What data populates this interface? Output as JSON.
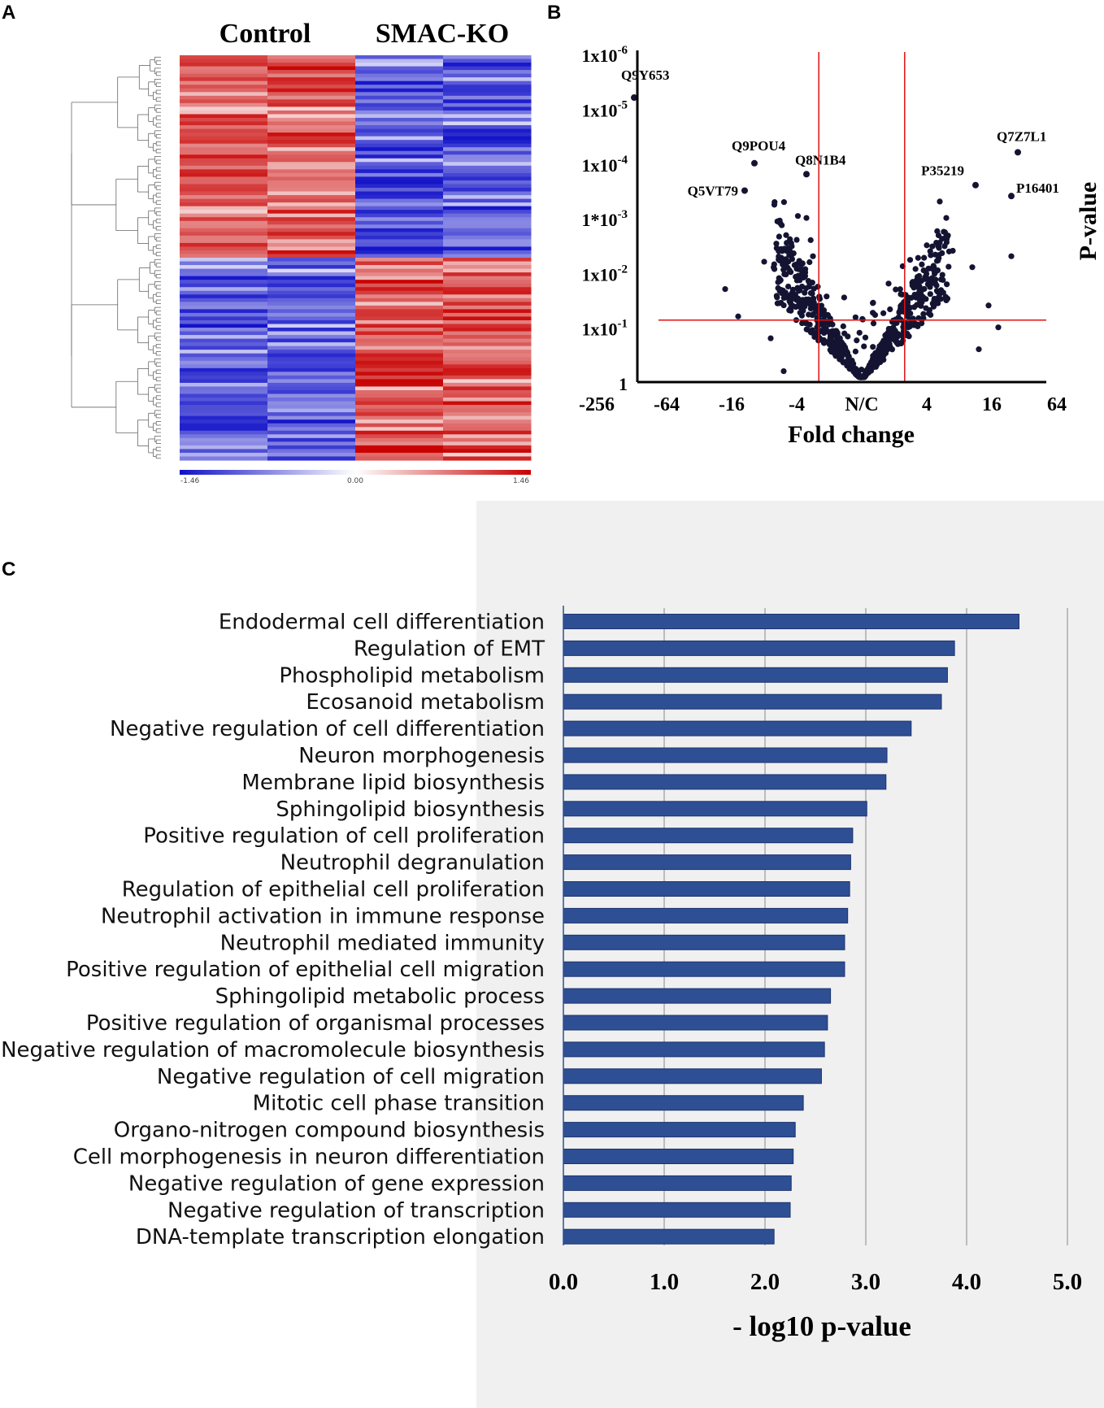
{
  "panels": {
    "a": "A",
    "b": "B",
    "c": "C"
  },
  "colors": {
    "bar": "#2e4f93",
    "low": "#1010c8",
    "high": "#c80000",
    "mid": "#ffffff",
    "red_line": "#e01010",
    "point": "#141432"
  },
  "chart_data": [
    {
      "type": "heatmap",
      "panel": "A",
      "column_groups": [
        "Control",
        "SMAC-KO"
      ],
      "columns": 4,
      "rows": 110,
      "dendrogram": "rows",
      "clusters": [
        {
          "rows": "1-55",
          "Control": "up",
          "SMAC-KO": "down"
        },
        {
          "rows": "56-110",
          "Control": "down",
          "SMAC-KO": "up"
        }
      ],
      "colorbar": {
        "min": -1.46,
        "mid": 0.0,
        "max": 1.46,
        "labels": [
          "-1.46",
          "0.00",
          "1.46"
        ],
        "colors": [
          "#1010c8",
          "#ffffff",
          "#c80000"
        ]
      }
    },
    {
      "type": "scatter",
      "panel": "B",
      "title": "",
      "xlabel": "Fold  change",
      "ylabel": "P-value",
      "x_ticks": [
        "-256",
        "-64",
        "-16",
        "-4",
        "N/C",
        "4",
        "16",
        "64"
      ],
      "x_scale": "log2 fold change",
      "y_ticks": [
        {
          "base": "1x10",
          "exp": "-6"
        },
        {
          "base": "1x10",
          "exp": "-5"
        },
        {
          "base": "1x10",
          "exp": "-4"
        },
        {
          "base": "1*10",
          "exp": "-3"
        },
        {
          "base": "1x10",
          "exp": "-2"
        },
        {
          "base": "1x10",
          "exp": "-1"
        },
        {
          "base": "1",
          "exp": ""
        }
      ],
      "y_scale": "-log10 p, 0 to 6",
      "threshold_lines": {
        "fold_change": [
          -2,
          2
        ],
        "p_value": 0.06
      },
      "labeled_points": [
        {
          "label": "Q9Y653",
          "log2fc": -7.0,
          "neglog10p": 5.2
        },
        {
          "label": "Q9POU4",
          "log2fc": -3.3,
          "neglog10p": 4.0
        },
        {
          "label": "Q5VT79",
          "log2fc": -3.6,
          "neglog10p": 3.5
        },
        {
          "label": "Q8N1B4",
          "log2fc": -1.7,
          "neglog10p": 3.8
        },
        {
          "label": "P35219",
          "log2fc": 3.5,
          "neglog10p": 3.6
        },
        {
          "label": "Q7Z7L1",
          "log2fc": 4.8,
          "neglog10p": 4.2
        },
        {
          "label": "P16401",
          "log2fc": 4.6,
          "neglog10p": 3.4
        }
      ],
      "background_points": "approx. 800 proteins forming a V-shaped volcano distribution centred at N/C"
    },
    {
      "type": "bar",
      "panel": "C",
      "orientation": "horizontal",
      "xlabel": "- log10 p-value",
      "ylabel": "",
      "xlim": [
        0,
        5
      ],
      "x_ticks": [
        "0.0",
        "1.0",
        "2.0",
        "3.0",
        "4.0",
        "5.0"
      ],
      "categories": [
        "Endodermal cell differentiation",
        "Regulation of EMT",
        "Phospholipid metabolism",
        "Ecosanoid metabolism",
        "Negative regulation of cell differentiation",
        "Neuron  morphogenesis",
        "Membrane lipid biosynthesis",
        "Sphingolipid biosynthesis",
        "Positive regulation of cell proliferation",
        "Neutrophil degranulation",
        "Regulation of epithelial cell proliferation",
        "Neutrophil activation in immune response",
        "Neutrophil mediated immunity",
        "Positive regulation of epithelial cell migration",
        "Sphingolipid metabolic process",
        "Positive regulation of organismal processes",
        "Negative regulation of macromolecule biosynthesis",
        "Negative regulation of cell migration",
        "Mitotic cell phase transition",
        "Organo-nitrogen compound biosynthesis",
        "Cell morphogenesis in neuron differentiation",
        "Negative regulation of gene expression",
        "Negative regulation of transcription",
        "DNA-template transcription elongation"
      ],
      "values": [
        4.52,
        3.88,
        3.81,
        3.75,
        3.45,
        3.21,
        3.2,
        3.01,
        2.87,
        2.85,
        2.84,
        2.82,
        2.79,
        2.79,
        2.65,
        2.62,
        2.59,
        2.56,
        2.38,
        2.3,
        2.28,
        2.26,
        2.25,
        2.09
      ]
    }
  ]
}
